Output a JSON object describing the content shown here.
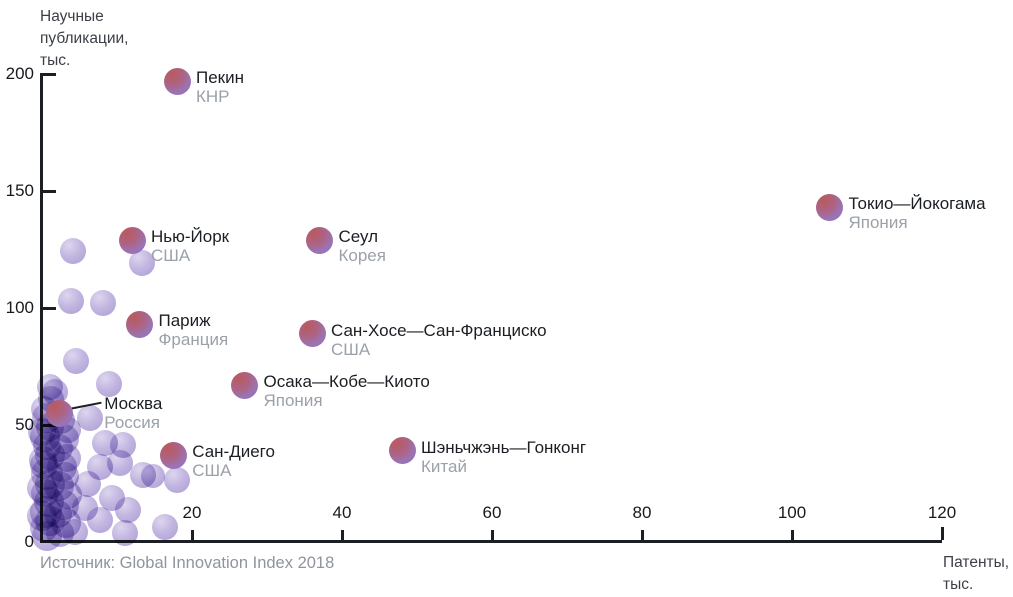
{
  "chart_data": {
    "type": "scatter",
    "title": "",
    "xlabel": "Патенты, тыс.",
    "ylabel": "Научные публикации, тыс.",
    "xlabel_lines": [
      "Патенты,",
      "тыс."
    ],
    "ylabel_lines": [
      "Научные",
      "публикации,",
      "тыс."
    ],
    "source": "Источник: Global Innovation Index 2018",
    "xlim": [
      0,
      120
    ],
    "ylim": [
      0,
      200
    ],
    "x_ticks": [
      20,
      40,
      60,
      80,
      100,
      120
    ],
    "y_ticks": [
      0,
      50,
      100,
      150,
      200
    ],
    "grid": false,
    "legend": "none",
    "units": "тыс.",
    "colors": {
      "axis": "#1b1e23",
      "tick_text": "#17191d",
      "city_text": "#1b1e23",
      "country_text": "#9ba1a9",
      "source_text": "#8f949d",
      "highlight_gradient_start": "#b95a5e",
      "highlight_gradient_end": "#8a70c0",
      "background_bubble": "#b4a6d9"
    },
    "cities": [
      {
        "name": "Пекин",
        "country": "КНР",
        "x": 18,
        "y": 197,
        "label_placement": "right"
      },
      {
        "name": "Токио—Йокогама",
        "country": "Япония",
        "x": 105,
        "y": 143,
        "label_placement": "right"
      },
      {
        "name": "Нью-Йорк",
        "country": "США",
        "x": 12,
        "y": 129,
        "label_placement": "right"
      },
      {
        "name": "Сеул",
        "country": "Корея",
        "x": 37,
        "y": 129,
        "label_placement": "right"
      },
      {
        "name": "Париж",
        "country": "Франция",
        "x": 13,
        "y": 93,
        "label_placement": "right"
      },
      {
        "name": "Сан-Хосе—Сан-Франциско",
        "country": "США",
        "x": 36,
        "y": 89,
        "label_placement": "right"
      },
      {
        "name": "Осака—Кобе—Киото",
        "country": "Япония",
        "x": 27,
        "y": 67,
        "label_placement": "right"
      },
      {
        "name": "Москва",
        "country": "Россия",
        "x": 2.3,
        "y": 55,
        "label_placement": "leader"
      },
      {
        "name": "Сан-Диего",
        "country": "США",
        "x": 17.5,
        "y": 37,
        "label_placement": "right"
      },
      {
        "name": "Шэньчжэнь—Гонконг",
        "country": "Китай",
        "x": 48,
        "y": 39,
        "label_placement": "right"
      }
    ],
    "background_points": [
      {
        "x": 4.1,
        "y": 124.4,
        "r": 13
      },
      {
        "x": 13.3,
        "y": 119.2,
        "r": 13
      },
      {
        "x": 3.9,
        "y": 103.0,
        "r": 13
      },
      {
        "x": 8.1,
        "y": 102.1,
        "r": 13
      },
      {
        "x": 4.5,
        "y": 77.4,
        "r": 13
      },
      {
        "x": 8.9,
        "y": 67.5,
        "r": 13
      },
      {
        "x": 1.1,
        "y": 66.2,
        "r": 13
      },
      {
        "x": 1.7,
        "y": 64.1,
        "r": 13
      },
      {
        "x": 6.4,
        "y": 53.0,
        "r": 13
      },
      {
        "x": 8.4,
        "y": 42.3,
        "r": 13
      },
      {
        "x": 10.8,
        "y": 41.5,
        "r": 13
      },
      {
        "x": 10.4,
        "y": 33.8,
        "r": 13
      },
      {
        "x": 7.7,
        "y": 32.0,
        "r": 13
      },
      {
        "x": 13.5,
        "y": 28.6,
        "r": 13
      },
      {
        "x": 14.8,
        "y": 28.0,
        "r": 12
      },
      {
        "x": 18.0,
        "y": 26.5,
        "r": 13
      },
      {
        "x": 6.1,
        "y": 25.0,
        "r": 13
      },
      {
        "x": 9.3,
        "y": 18.8,
        "r": 13
      },
      {
        "x": 5.7,
        "y": 14.5,
        "r": 13
      },
      {
        "x": 11.5,
        "y": 13.7,
        "r": 13
      },
      {
        "x": 7.7,
        "y": 9.4,
        "r": 13
      },
      {
        "x": 16.4,
        "y": 6.4,
        "r": 13
      },
      {
        "x": 11.1,
        "y": 3.8,
        "r": 13
      },
      {
        "x": 4.4,
        "y": 4.3,
        "r": 13
      },
      {
        "x": 0.6,
        "y": 2.5,
        "r": 15
      },
      {
        "x": 0.3,
        "y": 6,
        "r": 14
      },
      {
        "x": 1.0,
        "y": 9,
        "r": 15
      },
      {
        "x": 0.5,
        "y": 13,
        "r": 16
      },
      {
        "x": 0.9,
        "y": 17,
        "r": 15
      },
      {
        "x": 0.4,
        "y": 21,
        "r": 14
      },
      {
        "x": 1.1,
        "y": 25,
        "r": 15
      },
      {
        "x": 0.6,
        "y": 29,
        "r": 16
      },
      {
        "x": 0.3,
        "y": 33,
        "r": 14
      },
      {
        "x": 1.0,
        "y": 37,
        "r": 15
      },
      {
        "x": 0.6,
        "y": 41,
        "r": 14
      },
      {
        "x": 0.4,
        "y": 45,
        "r": 15
      },
      {
        "x": 1.0,
        "y": 49,
        "r": 14
      },
      {
        "x": 0.7,
        "y": 53,
        "r": 15
      },
      {
        "x": 0.3,
        "y": 57,
        "r": 13
      },
      {
        "x": 1.2,
        "y": 61,
        "r": 13
      },
      {
        "x": 0.0,
        "y": 11,
        "r": 15
      },
      {
        "x": 0.0,
        "y": 23,
        "r": 15
      },
      {
        "x": 0.1,
        "y": 35,
        "r": 14
      },
      {
        "x": 0.0,
        "y": 47,
        "r": 14
      },
      {
        "x": 2.4,
        "y": 4,
        "r": 14
      },
      {
        "x": 3.2,
        "y": 8,
        "r": 15
      },
      {
        "x": 2.1,
        "y": 12,
        "r": 14
      },
      {
        "x": 2.9,
        "y": 16,
        "r": 15
      },
      {
        "x": 3.4,
        "y": 20,
        "r": 14
      },
      {
        "x": 2.3,
        "y": 24,
        "r": 15
      },
      {
        "x": 3.0,
        "y": 28,
        "r": 14
      },
      {
        "x": 2.6,
        "y": 32,
        "r": 15
      },
      {
        "x": 3.3,
        "y": 36,
        "r": 14
      },
      {
        "x": 2.2,
        "y": 40,
        "r": 14
      },
      {
        "x": 2.9,
        "y": 44,
        "r": 15
      },
      {
        "x": 3.5,
        "y": 48,
        "r": 13
      },
      {
        "x": 2.5,
        "y": 52,
        "r": 14
      }
    ]
  }
}
